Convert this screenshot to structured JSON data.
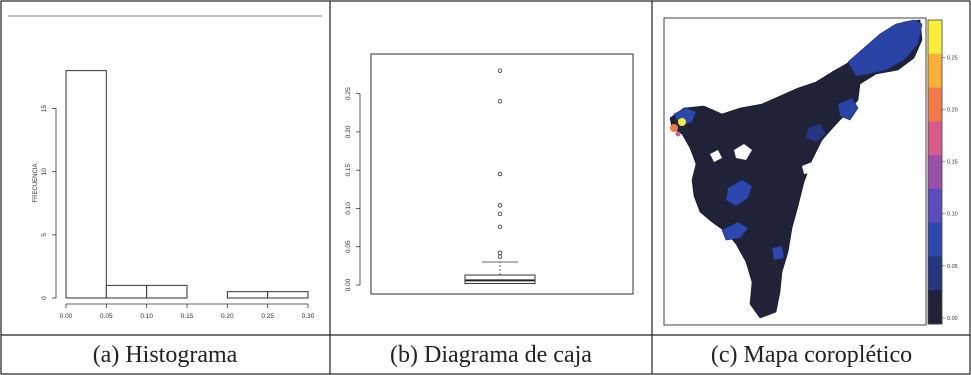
{
  "captions": {
    "a": "(a) Histograma",
    "b": "(b) Diagrama de caja",
    "c": "(c) Mapa coroplético"
  },
  "chart_data": [
    {
      "type": "bar",
      "subtype": "histogram",
      "bins": [
        [
          0.0,
          0.05
        ],
        [
          0.05,
          0.1
        ],
        [
          0.1,
          0.15
        ],
        [
          0.15,
          0.2
        ],
        [
          0.2,
          0.25
        ],
        [
          0.25,
          0.3
        ]
      ],
      "values": [
        18,
        1,
        1,
        0,
        0.5,
        0.5
      ],
      "xlabel": "",
      "ylabel": "FRECUENCIA",
      "xticks": [
        "0.00",
        "0.05",
        "0.10",
        "0.15",
        "0.20",
        "0.25",
        "0.30"
      ],
      "yticks": [
        "0",
        "5",
        "10",
        "15"
      ],
      "xlim": [
        0,
        0.3
      ],
      "ylim": [
        0,
        19
      ],
      "grid": false
    },
    {
      "type": "box",
      "stats": {
        "min": 0.0,
        "q1": 0.002,
        "median": 0.006,
        "q3": 0.013,
        "whisker_high": 0.03
      },
      "outliers": [
        0.037,
        0.042,
        0.076,
        0.093,
        0.104,
        0.145,
        0.24,
        0.28
      ],
      "yticks": [
        "0.00",
        "0.05",
        "0.10",
        "0.15",
        "0.20",
        "0.25"
      ],
      "ylim": [
        0,
        0.29
      ],
      "grid": false
    },
    {
      "type": "heatmap",
      "subtype": "choropleth-map",
      "legend_ticks": [
        "0.00",
        "0.05",
        "0.10",
        "0.15",
        "0.20",
        "0.25"
      ],
      "legend_range": [
        0,
        0.28
      ],
      "legend_placement": "right",
      "colors": [
        "#202338",
        "#26367e",
        "#2c47ad",
        "#5a4dbd",
        "#9a4fa8",
        "#d85c8a",
        "#f07a45",
        "#fbb139",
        "#f8ee3a"
      ],
      "background": "#ffffff"
    }
  ]
}
